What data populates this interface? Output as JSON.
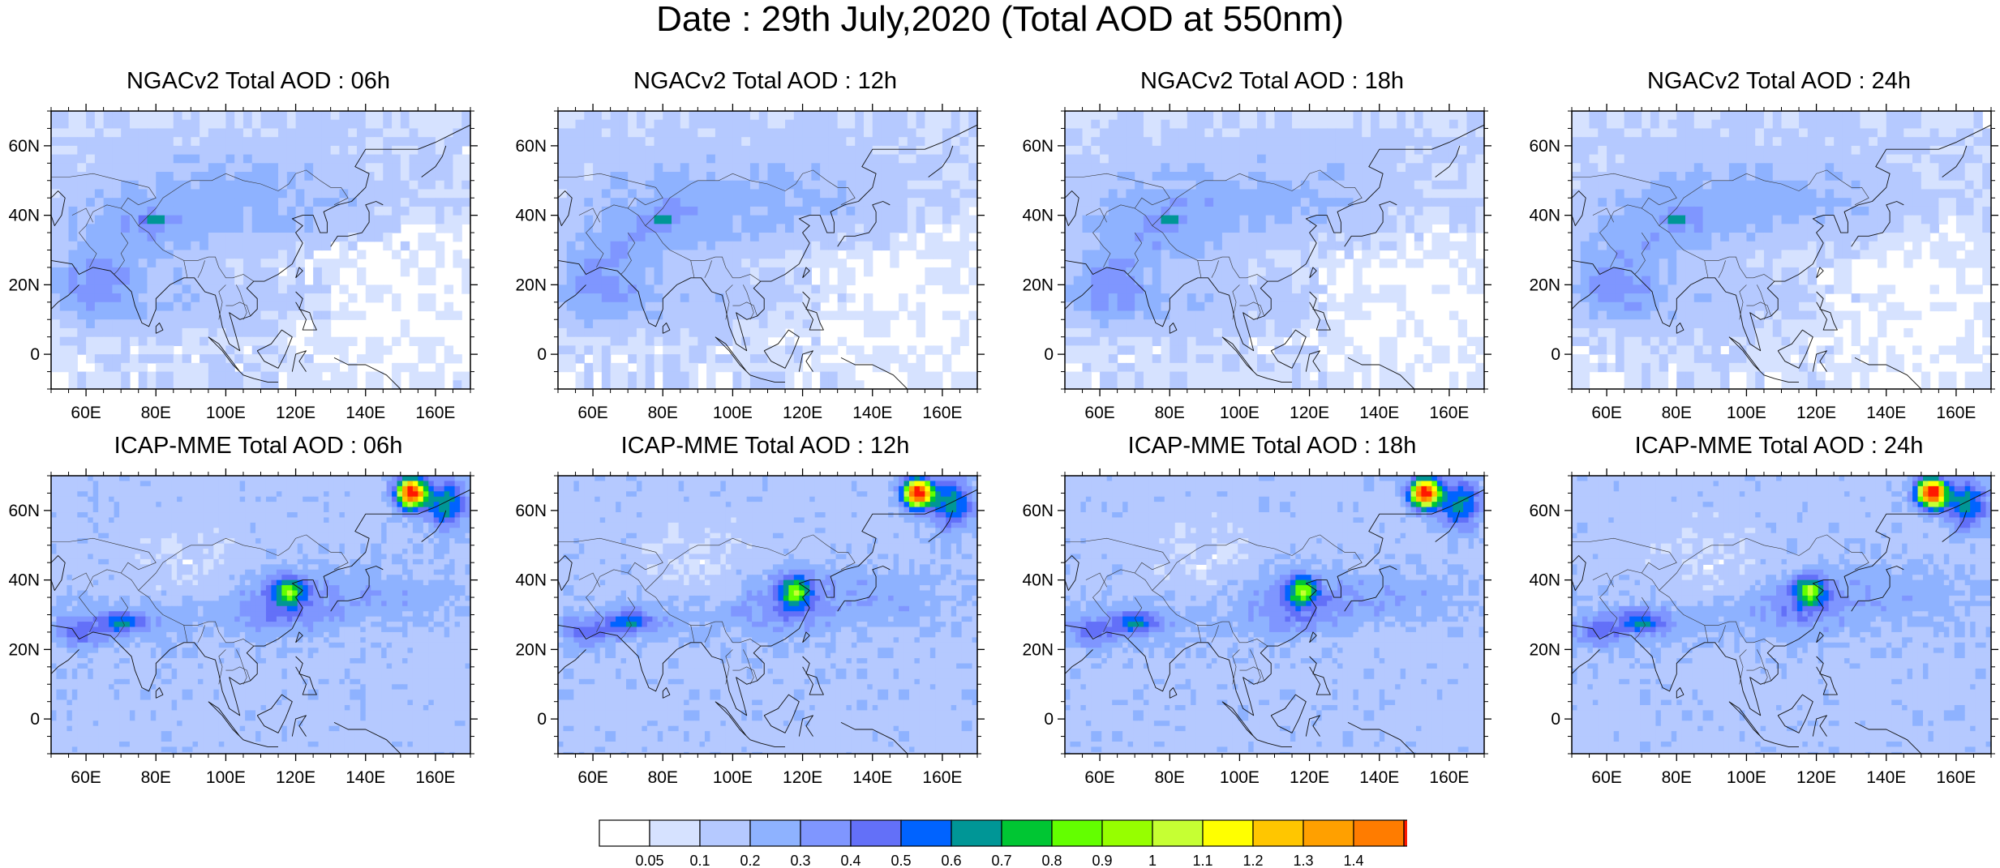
{
  "figure": {
    "title": "Date : 29th July,2020 (Total AOD at 550nm)"
  },
  "panels": [
    {
      "id": "ngac-06",
      "title": "NGACv2 Total AOD : 06h",
      "model": "NGACv2",
      "hour": "06h"
    },
    {
      "id": "ngac-12",
      "title": "NGACv2 Total AOD : 12h",
      "model": "NGACv2",
      "hour": "12h"
    },
    {
      "id": "ngac-18",
      "title": "NGACv2 Total AOD : 18h",
      "model": "NGACv2",
      "hour": "18h"
    },
    {
      "id": "ngac-24",
      "title": "NGACv2 Total AOD : 24h",
      "model": "NGACv2",
      "hour": "24h"
    },
    {
      "id": "icap-06",
      "title": "ICAP-MME Total AOD : 06h",
      "model": "ICAP-MME",
      "hour": "06h"
    },
    {
      "id": "icap-12",
      "title": "ICAP-MME Total AOD : 12h",
      "model": "ICAP-MME",
      "hour": "12h"
    },
    {
      "id": "icap-18",
      "title": "ICAP-MME Total AOD : 18h",
      "model": "ICAP-MME",
      "hour": "18h"
    },
    {
      "id": "icap-24",
      "title": "ICAP-MME Total AOD : 24h",
      "model": "ICAP-MME",
      "hour": "24h"
    }
  ],
  "axes": {
    "lat_labels": [
      "60N",
      "40N",
      "20N",
      "0"
    ],
    "lon_labels": [
      "60E",
      "80E",
      "100E",
      "120E",
      "140E",
      "160E"
    ],
    "lat_range": [
      -10,
      70
    ],
    "lon_range": [
      50,
      170
    ]
  },
  "colorbar": {
    "labels": [
      "0.05",
      "0.1",
      "0.2",
      "0.3",
      "0.4",
      "0.5",
      "0.6",
      "0.7",
      "0.8",
      "0.9",
      "1",
      "1.1",
      "1.2",
      "1.3",
      "1.4"
    ],
    "colors": [
      "#ffffff",
      "#d6e2ff",
      "#b5c9ff",
      "#8eb2ff",
      "#7f96ff",
      "#6370f8",
      "#0063ff",
      "#009696",
      "#00c633",
      "#63ff00",
      "#96ff00",
      "#c6ff33",
      "#ffff00",
      "#ffc600",
      "#ffa000",
      "#ff7c00",
      "#ff1900"
    ]
  }
}
